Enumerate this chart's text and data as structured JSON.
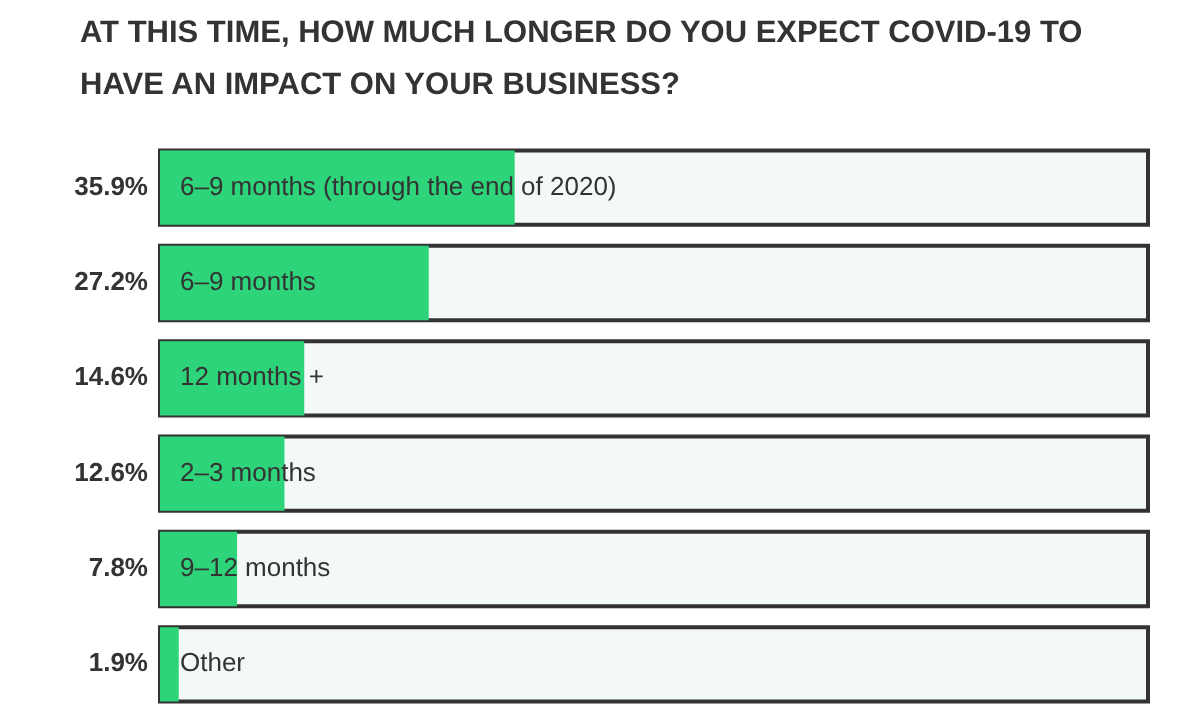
{
  "chart_data": {
    "type": "bar",
    "orientation": "horizontal",
    "title": "AT THIS TIME, HOW MUCH LONGER DO YOU EXPECT COVID-19 TO HAVE AN IMPACT ON YOUR BUSINESS?",
    "categories": [
      "6–9 months (through the end of 2020)",
      "6–9 months",
      "12 months +",
      "2–3 months",
      "9–12 months",
      "Other"
    ],
    "values": [
      35.9,
      27.2,
      14.6,
      12.6,
      7.8,
      1.9
    ],
    "value_labels": [
      "35.9%",
      "27.2%",
      "14.6%",
      "12.6%",
      "7.8%",
      "1.9%"
    ],
    "color": "#2ed47a",
    "xlim": [
      0,
      100
    ]
  }
}
